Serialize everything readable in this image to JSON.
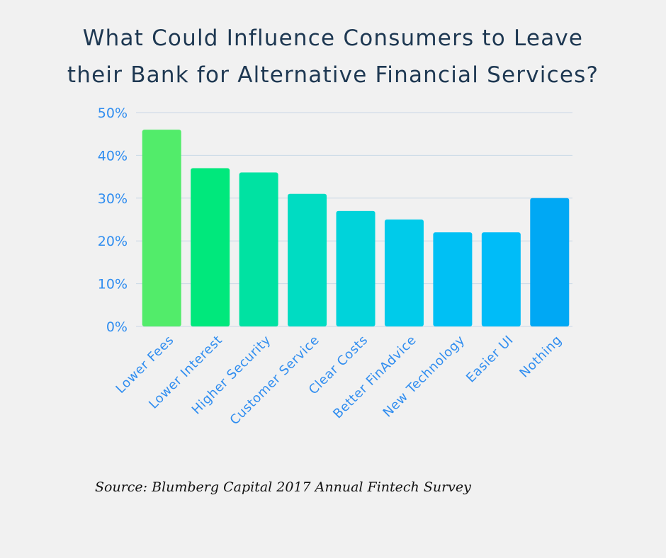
{
  "title": {
    "line1": "What Could Influence Consumers to Leave",
    "line2": "their Bank for Alternative Financial Services?"
  },
  "source": "Source: Blumberg Capital 2017 Annual Fintech Survey",
  "chart_data": {
    "type": "bar",
    "title": "What Could Influence Consumers to Leave their Bank for Alternative Financial Services?",
    "categories": [
      "Lower Fees",
      "Lower Interest",
      "Higher Security",
      "Customer Service",
      "Clear Costs",
      "Better FinAdvice",
      "New Technology",
      "Easier UI",
      "Nothing"
    ],
    "values": [
      46,
      37,
      36,
      31,
      27,
      25,
      22,
      22,
      30
    ],
    "bar_colors": [
      "#52ec6a",
      "#00e87c",
      "#00e2a2",
      "#00dcc2",
      "#00d3da",
      "#00cbea",
      "#00c0f4",
      "#00bcf8",
      "#00a8f4"
    ],
    "yticks": [
      "0%",
      "10%",
      "20%",
      "30%",
      "40%",
      "50%"
    ],
    "ylim": [
      0,
      50
    ],
    "grid": true,
    "legend": "none",
    "axis_label_color": "#2f8df0",
    "grid_color": "#c9d8e6"
  }
}
